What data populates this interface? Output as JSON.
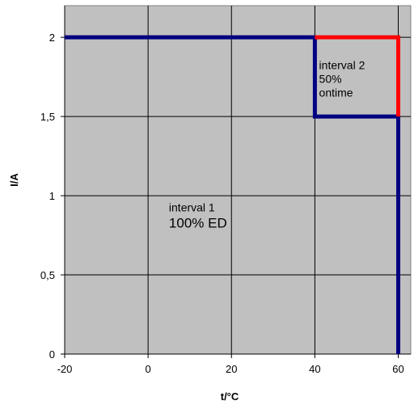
{
  "chart_data": {
    "type": "line",
    "title": "",
    "xlabel": "t/°C",
    "ylabel": "I/A",
    "xlim": [
      -20,
      63
    ],
    "ylim": [
      0,
      2.2
    ],
    "x_ticks": [
      -20,
      0,
      20,
      40,
      60
    ],
    "x_tick_labels": [
      "-20",
      "0",
      "20",
      "40",
      "60"
    ],
    "y_ticks": [
      0,
      0.5,
      1,
      1.5,
      2
    ],
    "y_tick_labels": [
      "0",
      "0,5",
      "1",
      "1,5",
      "2"
    ],
    "grid": true,
    "legend": "none",
    "plot_background": "#c0c0c0",
    "series": [
      {
        "color": "#000080",
        "points": [
          [
            -20,
            2
          ],
          [
            40,
            2
          ],
          [
            40,
            1.5
          ],
          [
            60,
            1.5
          ],
          [
            60,
            0
          ]
        ]
      },
      {
        "color": "#ff0000",
        "points": [
          [
            40,
            2
          ],
          [
            60,
            2
          ],
          [
            60,
            1.5
          ]
        ]
      }
    ],
    "annotations": [
      {
        "lines": [
          "interval 1",
          "100% ED"
        ],
        "x": 5,
        "y": 0.9
      },
      {
        "lines": [
          "interval 2",
          "50%",
          "ontime"
        ],
        "x": 41,
        "y": 1.8
      }
    ]
  }
}
